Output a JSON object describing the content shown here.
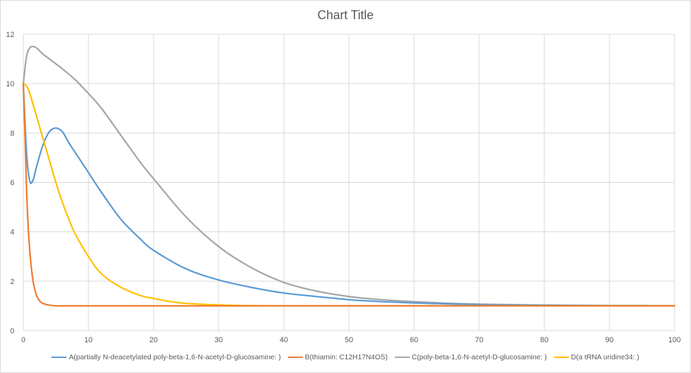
{
  "chart_data": {
    "type": "line",
    "title": "Chart Title",
    "xlabel": "",
    "ylabel": "",
    "xlim": [
      0,
      100
    ],
    "ylim": [
      0,
      12
    ],
    "x_ticks": [
      "0",
      "10",
      "20",
      "30",
      "40",
      "50",
      "60",
      "70",
      "80",
      "90",
      "100"
    ],
    "y_ticks": [
      "0",
      "2",
      "4",
      "6",
      "8",
      "10",
      "12"
    ],
    "grid": true,
    "legend_position": "bottom",
    "series": [
      {
        "name": "A(partially   N-deacetylated poly-beta-1,6-N-acetyl-D-glucosamine: )",
        "color": "#5b9bd5",
        "x": [
          0,
          0.5,
          1,
          1.5,
          2,
          3,
          4,
          5,
          6,
          7,
          8,
          10,
          12,
          15,
          18,
          20,
          25,
          30,
          35,
          40,
          45,
          50,
          55,
          60,
          65,
          70,
          75,
          80,
          85,
          90,
          95,
          100
        ],
        "y": [
          10,
          7.2,
          6.05,
          6.1,
          6.6,
          7.5,
          8.05,
          8.2,
          8.05,
          7.6,
          7.2,
          6.4,
          5.6,
          4.5,
          3.7,
          3.25,
          2.5,
          2.05,
          1.75,
          1.52,
          1.38,
          1.25,
          1.17,
          1.12,
          1.08,
          1.05,
          1.04,
          1.03,
          1.02,
          1.01,
          1.01,
          1.0
        ]
      },
      {
        "name": "B(thiamin: C12H17N4OS)",
        "color": "#ed7d31",
        "x": [
          0,
          0.3,
          0.6,
          1,
          1.5,
          2,
          2.5,
          3,
          4,
          5,
          6,
          8,
          10,
          20,
          40,
          60,
          80,
          100
        ],
        "y": [
          10,
          7.5,
          5.0,
          3.2,
          2.0,
          1.45,
          1.2,
          1.1,
          1.03,
          1.0,
          1.0,
          1.0,
          1.0,
          1.0,
          1.0,
          1.0,
          1.0,
          1.0
        ]
      },
      {
        "name": "C(poly-beta-1,6-N-acetyl-D-glucosamine: )",
        "color": "#a5a5a5",
        "x": [
          0,
          0.5,
          1,
          1.5,
          2,
          3,
          4,
          5,
          6,
          8,
          10,
          12,
          15,
          18,
          20,
          25,
          30,
          35,
          40,
          45,
          50,
          55,
          60,
          65,
          70,
          75,
          80,
          85,
          90,
          95,
          100
        ],
        "y": [
          10,
          11.1,
          11.45,
          11.5,
          11.45,
          11.2,
          11.0,
          10.8,
          10.6,
          10.15,
          9.6,
          9.0,
          7.9,
          6.8,
          6.15,
          4.6,
          3.4,
          2.55,
          1.95,
          1.6,
          1.38,
          1.25,
          1.17,
          1.11,
          1.07,
          1.05,
          1.03,
          1.02,
          1.01,
          1.01,
          1.0
        ]
      },
      {
        "name": "D(a tRNA uridine34: )",
        "color": "#ffc000",
        "x": [
          0,
          0.5,
          1,
          2,
          3,
          4,
          5,
          6,
          7,
          8,
          10,
          12,
          15,
          18,
          20,
          22,
          25,
          30,
          35,
          40,
          50,
          60,
          70,
          80,
          90,
          100
        ],
        "y": [
          10,
          9.9,
          9.6,
          8.7,
          7.8,
          6.9,
          6.0,
          5.2,
          4.5,
          3.9,
          3.0,
          2.3,
          1.75,
          1.42,
          1.3,
          1.2,
          1.1,
          1.04,
          1.01,
          1.0,
          1.0,
          1.0,
          1.0,
          1.0,
          1.0,
          1.0
        ]
      }
    ]
  }
}
